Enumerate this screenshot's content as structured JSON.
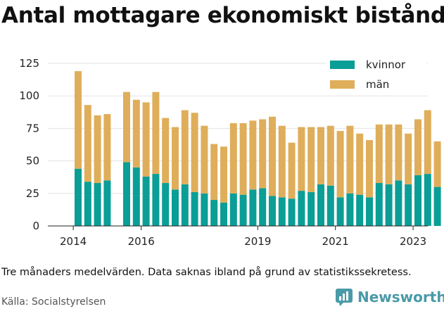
{
  "title": "Antal mottagare ekonomiskt bistånd",
  "note": "Tre månaders medelvärden. Data saknas ibland på grund av statistikssekretess.",
  "source": "Källa: Socialstyrelsen",
  "brand": {
    "name": "Newsworthy",
    "icon": "newsworthy-logo-icon",
    "color": "#4a9aa8"
  },
  "chart_data": {
    "type": "bar",
    "stacked": true,
    "grid": true,
    "legend_position": "top-right",
    "ylim": [
      0,
      125
    ],
    "yticks": [
      0,
      25,
      50,
      75,
      100,
      125
    ],
    "xticks": [
      "2014",
      "2016",
      "2019",
      "2021",
      "2023"
    ],
    "xlabel": "",
    "ylabel": "",
    "categories": [
      "2014 Q2",
      "2014 Q3",
      "2014 Q4",
      "2015 Q1",
      "2015 Q2",
      "2015 Q3",
      "2015 Q4",
      "2016 Q1",
      "2016 Q2",
      "2016 Q3",
      "2016 Q4",
      "2017 Q1",
      "2017 Q2",
      "2017 Q3",
      "2017 Q4",
      "2018 Q1",
      "2018 Q2",
      "2018 Q3",
      "2018 Q4",
      "2019 Q1",
      "2019 Q2",
      "2019 Q3",
      "2019 Q4",
      "2020 Q1",
      "2020 Q2",
      "2020 Q3",
      "2020 Q4",
      "2021 Q1",
      "2021 Q2",
      "2021 Q3",
      "2021 Q4",
      "2022 Q1",
      "2022 Q2",
      "2022 Q3",
      "2022 Q4",
      "2023 Q1",
      "2023 Q2",
      "2023 Q3",
      "2023 Q4"
    ],
    "series": [
      {
        "name": "kvinnor",
        "color": "#0a9e96",
        "values": [
          44,
          34,
          33,
          35,
          null,
          49,
          45,
          38,
          40,
          33,
          28,
          32,
          26,
          25,
          20,
          18,
          25,
          24,
          28,
          29,
          23,
          22,
          21,
          27,
          26,
          32,
          31,
          22,
          25,
          24,
          22,
          33,
          32,
          35,
          32,
          39,
          40,
          30,
          null
        ]
      },
      {
        "name": "män",
        "color": "#dfae5b",
        "values": [
          75,
          59,
          52,
          51,
          null,
          54,
          52,
          57,
          63,
          50,
          48,
          57,
          61,
          52,
          43,
          43,
          54,
          55,
          53,
          53,
          61,
          55,
          43,
          49,
          50,
          44,
          46,
          51,
          52,
          47,
          44,
          45,
          46,
          43,
          39,
          43,
          49,
          35,
          null
        ]
      }
    ]
  }
}
